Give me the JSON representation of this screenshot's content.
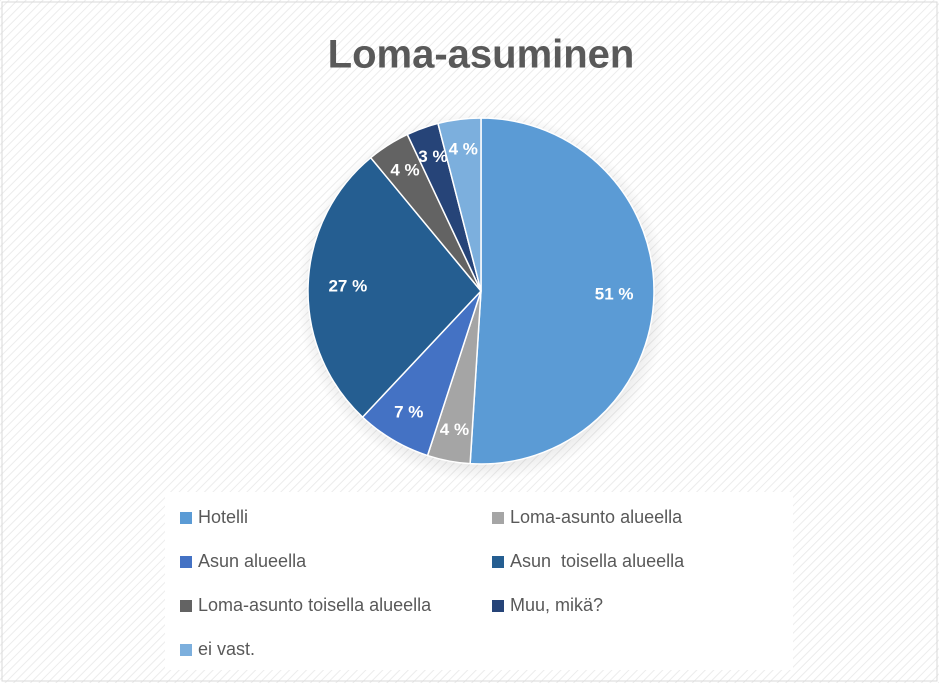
{
  "chart_data": {
    "type": "pie",
    "title": "Loma-asuminen",
    "categories": [
      "Hotelli",
      "Loma-asunto alueella",
      "Asun alueella",
      "Asun  toisella alueella",
      "Loma-asunto toisella alueella",
      "Muu, mikä?",
      "ei vast."
    ],
    "values": [
      51,
      4,
      7,
      27,
      4,
      3,
      4
    ],
    "value_labels": [
      "51 %",
      "4 %",
      "7 %",
      "27 %",
      "4 %",
      "3 %",
      "4 %"
    ],
    "colors": [
      "#5b9bd5",
      "#a5a5a5",
      "#4472c4",
      "#255e91",
      "#636363",
      "#264478",
      "#7cafdd"
    ],
    "legend": "bottom"
  }
}
